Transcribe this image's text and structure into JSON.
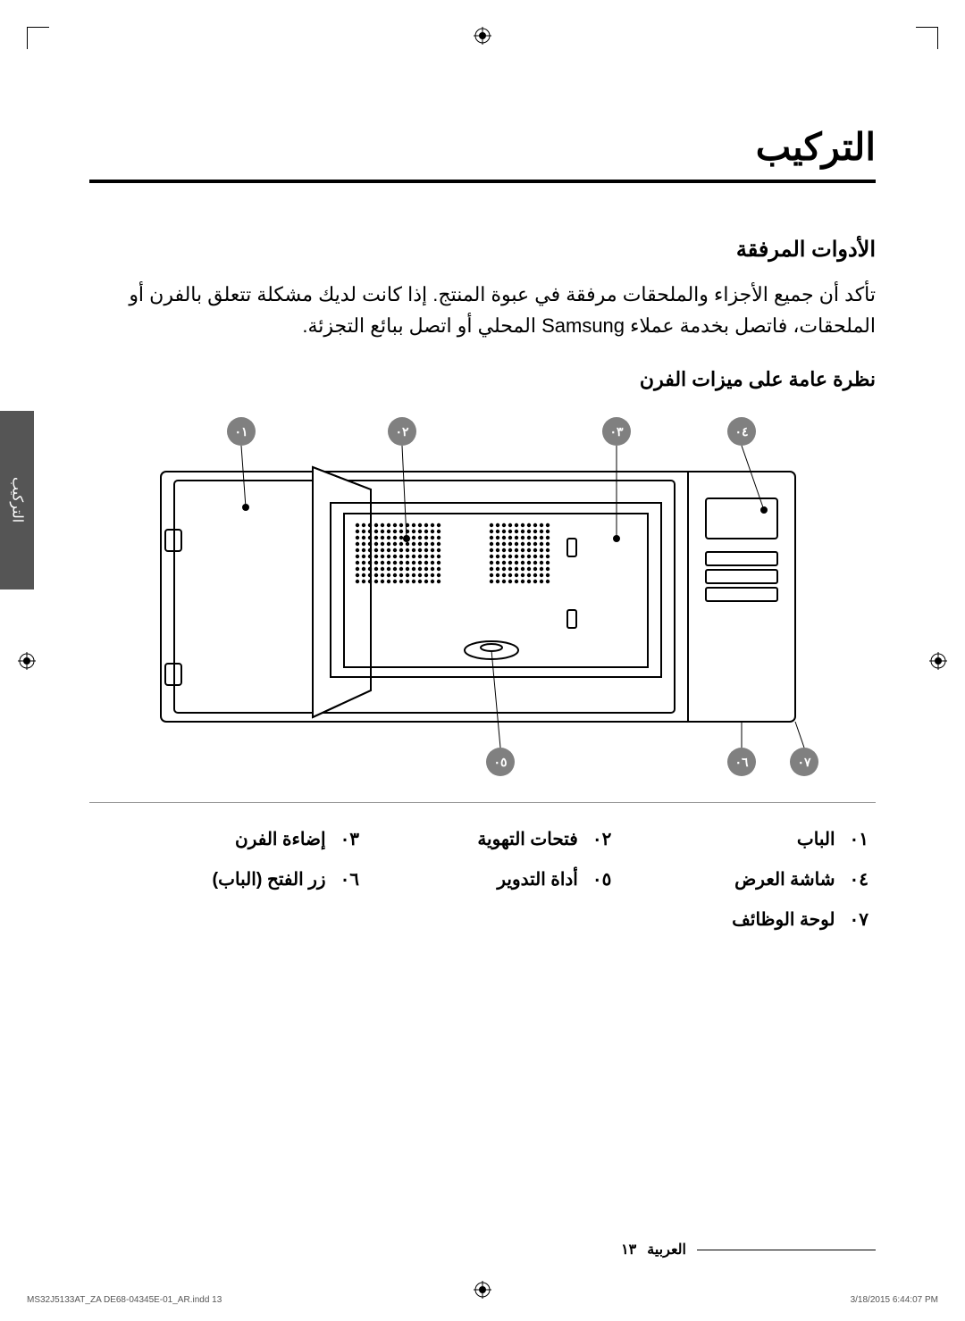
{
  "page": {
    "title": "التركيب",
    "section_title": "الأدوات المرفقة",
    "body_text": "تأكد أن جميع الأجزاء والملحقات مرفقة في عبوة المنتج. إذا كانت لديك مشكلة تتعلق بالفرن أو الملحقات، فاتصل بخدمة عملاء Samsung المحلي أو اتصل ببائع التجزئة.",
    "subsection": "نظرة عامة على ميزات الفرن"
  },
  "callouts": [
    "٠١",
    "٠٢",
    "٠٣",
    "٠٤",
    "٠٥",
    "٠٦",
    "٠٧"
  ],
  "parts": [
    {
      "num": "٠١",
      "label": "الباب"
    },
    {
      "num": "٠٢",
      "label": "فتحات التهوية"
    },
    {
      "num": "٠٣",
      "label": "إضاءة الفرن"
    },
    {
      "num": "٠٤",
      "label": "شاشة العرض"
    },
    {
      "num": "٠٥",
      "label": "أداة التدوير"
    },
    {
      "num": "٠٦",
      "label": "زر الفتح (الباب)"
    },
    {
      "num": "٠٧",
      "label": "لوحة الوظائف"
    }
  ],
  "side_tab": "التركيب",
  "footer": {
    "lang": "العربية",
    "page_num": "١٣"
  },
  "print": {
    "file": "MS32J5133AT_ZA DE68-04345E-01_AR.indd   13",
    "date": "3/18/2015   6:44:07 PM"
  },
  "colors": {
    "callout_fill": "#808080",
    "callout_text": "#ffffff",
    "line": "#000000",
    "dots": "#777777"
  }
}
